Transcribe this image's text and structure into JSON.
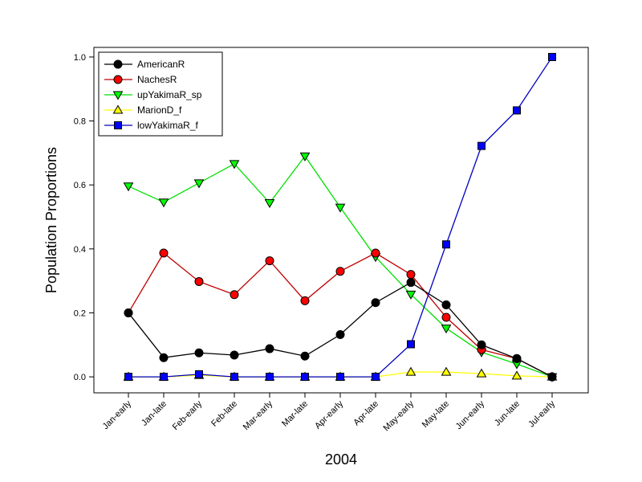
{
  "chart_data": {
    "type": "line",
    "title": "",
    "xlabel": "2004",
    "ylabel": "Population Proportions",
    "ylim": [
      -0.05,
      1.03
    ],
    "yticks": [
      0.0,
      0.2,
      0.4,
      0.6,
      0.8,
      1.0
    ],
    "ytick_labels": [
      "0.0",
      "0.2",
      "0.4",
      "0.6",
      "0.8",
      "1.0"
    ],
    "grid": false,
    "legend_position": "top-left",
    "categories": [
      "Jan-early",
      "Jan-late",
      "Feb-early",
      "Feb-late",
      "Mar-early",
      "Mar-late",
      "Apr-early",
      "Apr-late",
      "May-early",
      "May-late",
      "Jun-early",
      "Jun-late",
      "Jul-early"
    ],
    "series": [
      {
        "name": "AmericanR",
        "marker": "circle",
        "line_color": "#000000",
        "fill": "#000000",
        "values": [
          0.2,
          0.06,
          0.075,
          0.068,
          0.088,
          0.065,
          0.132,
          0.232,
          0.295,
          0.225,
          0.1,
          0.057,
          0.0
        ]
      },
      {
        "name": "NachesR",
        "marker": "circle",
        "line_color": "#c00000",
        "fill": "#ff0000",
        "values": [
          0.2,
          0.387,
          0.298,
          0.257,
          0.363,
          0.238,
          0.33,
          0.387,
          0.32,
          0.186,
          0.085,
          0.057,
          0.0
        ]
      },
      {
        "name": "upYakimaR_sp",
        "marker": "triangle-down",
        "line_color": "#00e000",
        "fill": "#00ff00",
        "values": [
          0.596,
          0.546,
          0.606,
          0.666,
          0.544,
          0.69,
          0.53,
          0.375,
          0.258,
          0.152,
          0.077,
          0.04,
          0.0
        ]
      },
      {
        "name": "MarionD_f",
        "marker": "triangle-up",
        "line_color": "#ffff00",
        "fill": "#ffff00",
        "values": [
          0.0,
          0.0,
          0.005,
          0.0,
          0.0,
          0.0,
          0.0,
          0.0,
          0.015,
          0.015,
          0.01,
          0.003,
          0.0
        ]
      },
      {
        "name": "lowYakimaR_f",
        "marker": "square",
        "line_color": "#0000c0",
        "fill": "#0000ff",
        "values": [
          0.0,
          0.0,
          0.008,
          0.0,
          0.0,
          0.0,
          0.0,
          0.0,
          0.102,
          0.414,
          0.722,
          0.833,
          1.0
        ]
      }
    ]
  }
}
